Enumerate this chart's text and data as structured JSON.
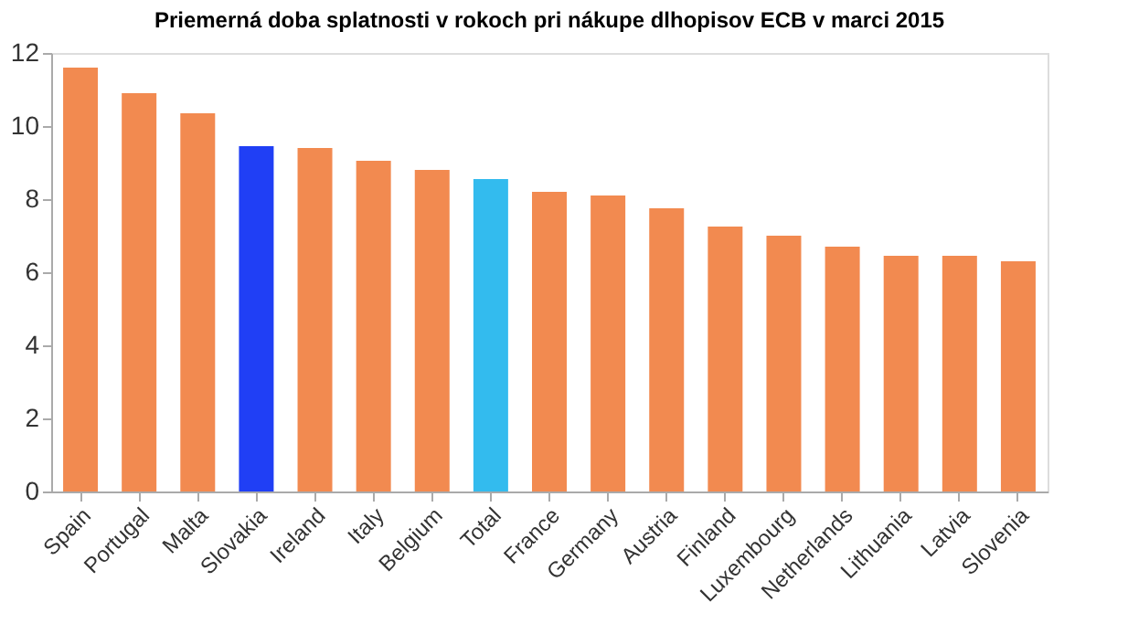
{
  "chart_data": {
    "type": "bar",
    "title": "Priemerná doba splatnosti v rokoch pri nákupe dlhopisov ECB v marci 2015",
    "categories": [
      "Spain",
      "Portugal",
      "Malta",
      "Slovakia",
      "Ireland",
      "Italy",
      "Belgium",
      "Total",
      "France",
      "Germany",
      "Austria",
      "Finland",
      "Luxembourg",
      "Netherlands",
      "Lithuania",
      "Latvia",
      "Slovenia"
    ],
    "values": [
      11.6,
      10.9,
      10.35,
      9.45,
      9.4,
      9.05,
      8.8,
      8.55,
      8.2,
      8.1,
      7.75,
      7.25,
      7.0,
      6.7,
      6.45,
      6.45,
      6.3
    ],
    "colors": [
      "#f28a50",
      "#f28a50",
      "#f28a50",
      "#203ff5",
      "#f28a50",
      "#f28a50",
      "#f28a50",
      "#33bbee",
      "#f28a50",
      "#f28a50",
      "#f28a50",
      "#f28a50",
      "#f28a50",
      "#f28a50",
      "#f28a50",
      "#f28a50",
      "#f28a50"
    ],
    "ylim": [
      0,
      12
    ],
    "yticks": [
      0,
      2,
      4,
      6,
      8,
      10,
      12
    ],
    "grid": false
  }
}
